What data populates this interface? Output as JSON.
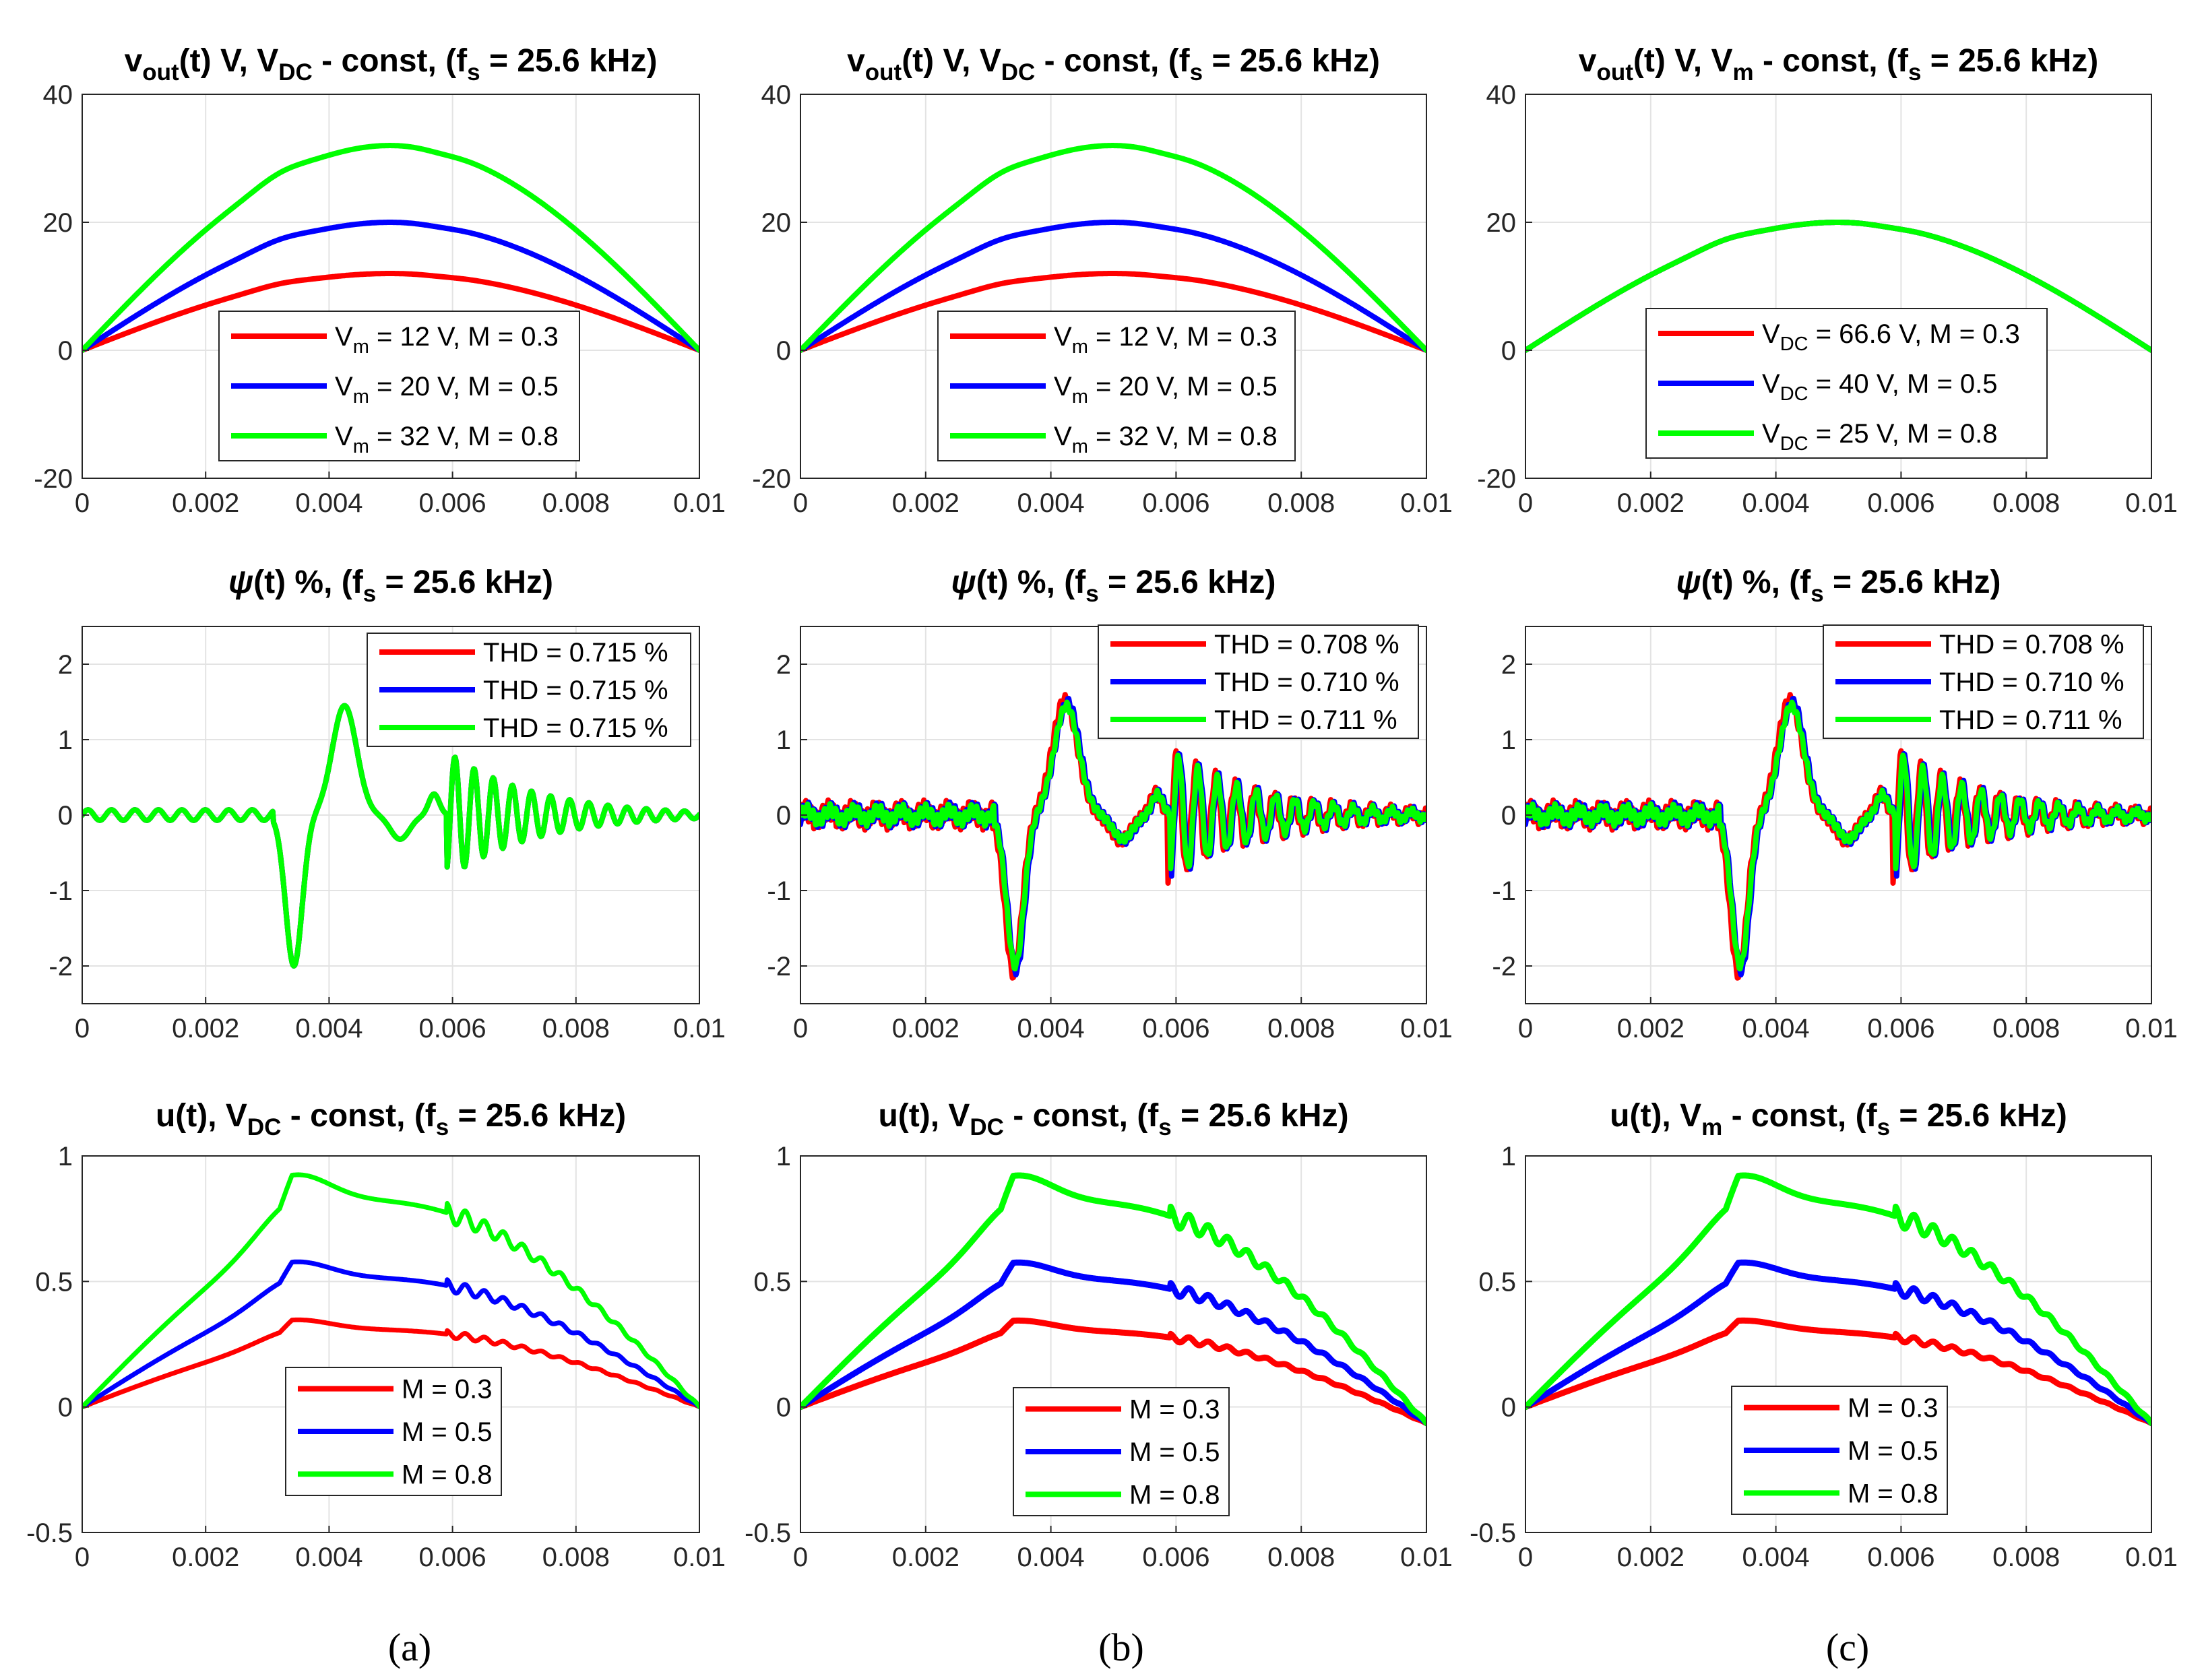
{
  "colors": {
    "red": "#ff0000",
    "blue": "#0000ff",
    "green": "#00ff00"
  },
  "panel_labels": [
    "(a)",
    "(b)",
    "(c)"
  ],
  "chart_data": [
    {
      "id": "vout-a",
      "type": "line",
      "title": [
        {
          "t": "v"
        },
        {
          "t": "out",
          "sub": true
        },
        {
          "t": "(t) V, V"
        },
        {
          "t": "DC",
          "sub": true
        },
        {
          "t": " - const, (f"
        },
        {
          "t": "s",
          "sub": true
        },
        {
          "t": " = 25.6 kHz)"
        }
      ],
      "xlim": [
        0,
        0.01
      ],
      "ylim": [
        -20,
        40
      ],
      "x_ticks": [
        0,
        0.002,
        0.004,
        0.006,
        0.008,
        0.01
      ],
      "x_tick_labels": [
        "0",
        "0.002",
        "0.004",
        "0.006",
        "0.008",
        "0.01"
      ],
      "y_ticks": [
        -20,
        0,
        20,
        40
      ],
      "y_tick_labels": [
        "-20",
        "0",
        "20",
        "40"
      ],
      "grid": true,
      "legend_position": "bottom-center",
      "series": [
        {
          "name": "Vm = 12 V, M = 0.3",
          "color": "#ff0000",
          "gen": "vout",
          "amp": 12,
          "label": [
            {
              "t": "V"
            },
            {
              "t": "m",
              "sub": true
            },
            {
              "t": " = 12 V, M = 0.3"
            }
          ]
        },
        {
          "name": "Vm = 20 V, M = 0.5",
          "color": "#0000ff",
          "gen": "vout",
          "amp": 20,
          "label": [
            {
              "t": "V"
            },
            {
              "t": "m",
              "sub": true
            },
            {
              "t": " = 20 V, M = 0.5"
            }
          ]
        },
        {
          "name": "Vm = 32 V, M = 0.8",
          "color": "#00ff00",
          "gen": "vout",
          "amp": 32,
          "label": [
            {
              "t": "V"
            },
            {
              "t": "m",
              "sub": true
            },
            {
              "t": " = 32 V, M = 0.8"
            }
          ]
        }
      ]
    },
    {
      "id": "vout-b",
      "type": "line",
      "title": [
        {
          "t": "v"
        },
        {
          "t": "out",
          "sub": true
        },
        {
          "t": "(t) V, V"
        },
        {
          "t": "DC",
          "sub": true
        },
        {
          "t": " - const, (f"
        },
        {
          "t": "s",
          "sub": true
        },
        {
          "t": " = 25.6 kHz)"
        }
      ],
      "xlim": [
        0,
        0.01
      ],
      "ylim": [
        -20,
        40
      ],
      "x_ticks": [
        0,
        0.002,
        0.004,
        0.006,
        0.008,
        0.01
      ],
      "x_tick_labels": [
        "0",
        "0.002",
        "0.004",
        "0.006",
        "0.008",
        "0.01"
      ],
      "y_ticks": [
        -20,
        0,
        20,
        40
      ],
      "y_tick_labels": [
        "-20",
        "0",
        "20",
        "40"
      ],
      "grid": true,
      "legend_position": "bottom-center",
      "series": [
        {
          "name": "Vm = 12 V, M = 0.3",
          "color": "#ff0000",
          "gen": "vout",
          "amp": 12,
          "label": [
            {
              "t": "V"
            },
            {
              "t": "m",
              "sub": true
            },
            {
              "t": " = 12 V, M = 0.3"
            }
          ]
        },
        {
          "name": "Vm = 20 V, M = 0.5",
          "color": "#0000ff",
          "gen": "vout",
          "amp": 20,
          "label": [
            {
              "t": "V"
            },
            {
              "t": "m",
              "sub": true
            },
            {
              "t": " = 20 V, M = 0.5"
            }
          ]
        },
        {
          "name": "Vm = 32 V, M = 0.8",
          "color": "#00ff00",
          "gen": "vout",
          "amp": 32,
          "label": [
            {
              "t": "V"
            },
            {
              "t": "m",
              "sub": true
            },
            {
              "t": " = 32 V, M = 0.8"
            }
          ]
        }
      ]
    },
    {
      "id": "vout-c",
      "type": "line",
      "title": [
        {
          "t": "v"
        },
        {
          "t": "out",
          "sub": true
        },
        {
          "t": "(t) V, V"
        },
        {
          "t": "m",
          "sub": true
        },
        {
          "t": " - const, (f"
        },
        {
          "t": "s",
          "sub": true
        },
        {
          "t": " = 25.6 kHz)"
        }
      ],
      "xlim": [
        0,
        0.01
      ],
      "ylim": [
        -20,
        40
      ],
      "x_ticks": [
        0,
        0.002,
        0.004,
        0.006,
        0.008,
        0.01
      ],
      "x_tick_labels": [
        "0",
        "0.002",
        "0.004",
        "0.006",
        "0.008",
        "0.01"
      ],
      "y_ticks": [
        -20,
        0,
        20,
        40
      ],
      "y_tick_labels": [
        "-20",
        "0",
        "20",
        "40"
      ],
      "grid": true,
      "legend_position": "bottom-center",
      "series": [
        {
          "name": "VDC = 66.6 V, M = 0.3",
          "color": "#ff0000",
          "gen": "vout",
          "amp": 20,
          "label": [
            {
              "t": "V"
            },
            {
              "t": "DC",
              "sub": true
            },
            {
              "t": " = 66.6 V, M = 0.3"
            }
          ]
        },
        {
          "name": "VDC = 40 V, M = 0.5",
          "color": "#0000ff",
          "gen": "vout",
          "amp": 20,
          "label": [
            {
              "t": "V"
            },
            {
              "t": "DC",
              "sub": true
            },
            {
              "t": " = 40 V,    M = 0.5"
            }
          ]
        },
        {
          "name": "VDC = 25 V, M = 0.8",
          "color": "#00ff00",
          "gen": "vout",
          "amp": 20,
          "label": [
            {
              "t": "V"
            },
            {
              "t": "DC",
              "sub": true
            },
            {
              "t": " = 25 V,    M = 0.8"
            }
          ]
        }
      ]
    },
    {
      "id": "psi-a",
      "type": "line",
      "title": [
        {
          "t": "ψ",
          "italic": true
        },
        {
          "t": "(t) %, (f"
        },
        {
          "t": "s",
          "sub": true
        },
        {
          "t": " = 25.6 kHz)"
        }
      ],
      "xlim": [
        0,
        0.01
      ],
      "ylim": [
        -2.5,
        2.5
      ],
      "x_ticks": [
        0,
        0.002,
        0.004,
        0.006,
        0.008,
        0.01
      ],
      "x_tick_labels": [
        "0",
        "0.002",
        "0.004",
        "0.006",
        "0.008",
        "0.01"
      ],
      "y_ticks": [
        -2,
        -1,
        0,
        1,
        2
      ],
      "y_tick_labels": [
        "-2",
        "-1",
        "0",
        "1",
        "2"
      ],
      "grid": true,
      "legend_position": "top-right",
      "series": [
        {
          "name": "THD = 0.715 %",
          "color": "#ff0000",
          "gen": "psi",
          "scale": 1.0,
          "shift": 0,
          "label": [
            {
              "t": "THD = 0.715 %"
            }
          ]
        },
        {
          "name": "THD = 0.715 %",
          "color": "#0000ff",
          "gen": "psi",
          "scale": 1.0,
          "shift": 0,
          "label": [
            {
              "t": "THD = 0.715 %"
            }
          ]
        },
        {
          "name": "THD = 0.715 %",
          "color": "#00ff00",
          "gen": "psi",
          "scale": 1.0,
          "shift": 0,
          "label": [
            {
              "t": "THD = 0.715 %"
            }
          ]
        }
      ]
    },
    {
      "id": "psi-b",
      "type": "line",
      "title": [
        {
          "t": "ψ",
          "italic": true
        },
        {
          "t": "(t) %, (f"
        },
        {
          "t": "s",
          "sub": true
        },
        {
          "t": " = 25.6 kHz)"
        }
      ],
      "xlim": [
        0,
        0.01
      ],
      "ylim": [
        -2.5,
        2.5
      ],
      "x_ticks": [
        0,
        0.002,
        0.004,
        0.006,
        0.008,
        0.01
      ],
      "x_tick_labels": [
        "0",
        "0.002",
        "0.004",
        "0.006",
        "0.008",
        "0.01"
      ],
      "y_ticks": [
        -2,
        -1,
        0,
        1,
        2
      ],
      "y_tick_labels": [
        "-2",
        "-1",
        "0",
        "1",
        "2"
      ],
      "grid": true,
      "legend_position": "top-right",
      "series": [
        {
          "name": "THD = 0.708 %",
          "color": "#ff0000",
          "gen": "psi",
          "scale": 1.05,
          "shift": -3e-05,
          "ripple": 0.12,
          "label": [
            {
              "t": "THD = 0.708 %"
            }
          ]
        },
        {
          "name": "THD = 0.710 %",
          "color": "#0000ff",
          "gen": "psi",
          "scale": 1.03,
          "shift": 2e-05,
          "ripple": 0.1,
          "label": [
            {
              "t": "THD = 0.710 %"
            }
          ]
        },
        {
          "name": "THD = 0.711 %",
          "color": "#00ff00",
          "gen": "psi",
          "scale": 1.0,
          "shift": 0,
          "ripple": 0.08,
          "label": [
            {
              "t": "THD = 0.711 %"
            }
          ]
        }
      ]
    },
    {
      "id": "psi-c",
      "type": "line",
      "title": [
        {
          "t": "ψ",
          "italic": true
        },
        {
          "t": "(t) %, (f"
        },
        {
          "t": "s",
          "sub": true
        },
        {
          "t": " = 25.6 kHz)"
        }
      ],
      "xlim": [
        0,
        0.01
      ],
      "ylim": [
        -2.5,
        2.5
      ],
      "x_ticks": [
        0,
        0.002,
        0.004,
        0.006,
        0.008,
        0.01
      ],
      "x_tick_labels": [
        "0",
        "0.002",
        "0.004",
        "0.006",
        "0.008",
        "0.01"
      ],
      "y_ticks": [
        -2,
        -1,
        0,
        1,
        2
      ],
      "y_tick_labels": [
        "-2",
        "-1",
        "0",
        "1",
        "2"
      ],
      "grid": true,
      "legend_position": "top-right",
      "series": [
        {
          "name": "THD = 0.708 %",
          "color": "#ff0000",
          "gen": "psi",
          "scale": 1.05,
          "shift": -3e-05,
          "ripple": 0.12,
          "label": [
            {
              "t": "THD = 0.708 %"
            }
          ]
        },
        {
          "name": "THD = 0.710 %",
          "color": "#0000ff",
          "gen": "psi",
          "scale": 1.03,
          "shift": 2e-05,
          "ripple": 0.1,
          "label": [
            {
              "t": "THD = 0.710 %"
            }
          ]
        },
        {
          "name": "THD = 0.711 %",
          "color": "#00ff00",
          "gen": "psi",
          "scale": 1.0,
          "shift": 0,
          "ripple": 0.08,
          "label": [
            {
              "t": "THD = 0.711 %"
            }
          ]
        }
      ]
    },
    {
      "id": "u-a",
      "type": "line",
      "title": [
        {
          "t": "u(t), V"
        },
        {
          "t": "DC",
          "sub": true
        },
        {
          "t": " - const, (f"
        },
        {
          "t": "s",
          "sub": true
        },
        {
          "t": " = 25.6 kHz)"
        }
      ],
      "xlim": [
        0,
        0.01
      ],
      "ylim": [
        -0.5,
        1
      ],
      "x_ticks": [
        0,
        0.002,
        0.004,
        0.006,
        0.008,
        0.01
      ],
      "x_tick_labels": [
        "0",
        "0.002",
        "0.004",
        "0.006",
        "0.008",
        "0.01"
      ],
      "y_ticks": [
        -0.5,
        0,
        0.5,
        1
      ],
      "y_tick_labels": [
        "-0.5",
        "0",
        "0.5",
        "1"
      ],
      "grid": true,
      "legend_position": "bottom-center",
      "series": [
        {
          "name": "M = 0.3",
          "color": "#ff0000",
          "gen": "u",
          "M": 0.3,
          "endNeg": false,
          "thick": 7,
          "label": [
            {
              "t": "M = 0.3"
            }
          ]
        },
        {
          "name": "M = 0.5",
          "color": "#0000ff",
          "gen": "u",
          "M": 0.5,
          "endNeg": false,
          "thick": 7,
          "label": [
            {
              "t": "M = 0.5"
            }
          ]
        },
        {
          "name": "M = 0.8",
          "color": "#00ff00",
          "gen": "u",
          "M": 0.8,
          "endNeg": false,
          "thick": 7,
          "label": [
            {
              "t": "M = 0.8"
            }
          ]
        }
      ]
    },
    {
      "id": "u-b",
      "type": "line",
      "title": [
        {
          "t": "u(t), V"
        },
        {
          "t": "DC",
          "sub": true
        },
        {
          "t": " - const, (f"
        },
        {
          "t": "s",
          "sub": true
        },
        {
          "t": " = 25.6 kHz)"
        }
      ],
      "xlim": [
        0,
        0.01
      ],
      "ylim": [
        -0.5,
        1
      ],
      "x_ticks": [
        0,
        0.002,
        0.004,
        0.006,
        0.008,
        0.01
      ],
      "x_tick_labels": [
        "0",
        "0.002",
        "0.004",
        "0.006",
        "0.008",
        "0.01"
      ],
      "y_ticks": [
        -0.5,
        0,
        0.5,
        1
      ],
      "y_tick_labels": [
        "-0.5",
        "0",
        "0.5",
        "1"
      ],
      "grid": true,
      "legend_position": "bottom-center",
      "series": [
        {
          "name": "M = 0.3",
          "color": "#ff0000",
          "gen": "u",
          "M": 0.3,
          "endNeg": true,
          "thick": 9,
          "label": [
            {
              "t": "M = 0.3"
            }
          ]
        },
        {
          "name": "M = 0.5",
          "color": "#0000ff",
          "gen": "u",
          "M": 0.5,
          "endNeg": true,
          "thick": 9,
          "label": [
            {
              "t": "M = 0.5"
            }
          ]
        },
        {
          "name": "M = 0.8",
          "color": "#00ff00",
          "gen": "u",
          "M": 0.8,
          "endNeg": true,
          "thick": 9,
          "label": [
            {
              "t": "M = 0.8"
            }
          ]
        }
      ]
    },
    {
      "id": "u-c",
      "type": "line",
      "title": [
        {
          "t": "u(t), V"
        },
        {
          "t": "m",
          "sub": true
        },
        {
          "t": " - const, (f"
        },
        {
          "t": "s",
          "sub": true
        },
        {
          "t": " = 25.6 kHz)"
        }
      ],
      "xlim": [
        0,
        0.01
      ],
      "ylim": [
        -0.5,
        1
      ],
      "x_ticks": [
        0,
        0.002,
        0.004,
        0.006,
        0.008,
        0.01
      ],
      "x_tick_labels": [
        "0",
        "0.002",
        "0.004",
        "0.006",
        "0.008",
        "0.01"
      ],
      "y_ticks": [
        -0.5,
        0,
        0.5,
        1
      ],
      "y_tick_labels": [
        "-0.5",
        "0",
        "0.5",
        "1"
      ],
      "grid": true,
      "legend_position": "bottom-center",
      "series": [
        {
          "name": "M = 0.3",
          "color": "#ff0000",
          "gen": "u",
          "M": 0.3,
          "endNeg": true,
          "thick": 9,
          "label": [
            {
              "t": "M = 0.3"
            }
          ]
        },
        {
          "name": "M = 0.5",
          "color": "#0000ff",
          "gen": "u",
          "M": 0.5,
          "endNeg": true,
          "thick": 9,
          "label": [
            {
              "t": "M = 0.5"
            }
          ]
        },
        {
          "name": "M = 0.8",
          "color": "#00ff00",
          "gen": "u",
          "M": 0.8,
          "endNeg": true,
          "thick": 9,
          "label": [
            {
              "t": "M = 0.8"
            }
          ]
        }
      ]
    }
  ]
}
